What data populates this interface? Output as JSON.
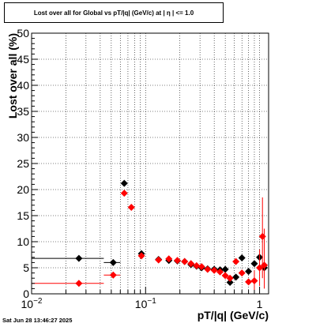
{
  "title_box": {
    "text": "Lost over all for Global vs pT/|q| (GeV/c) at |  η  | <= 1.0"
  },
  "datestamp": "Sat Jun 28 13:46:27 2025",
  "colors": {
    "black_series": "#000000",
    "red_series": "#ff0000",
    "grid": "#000000"
  },
  "chart_data": {
    "type": "scatter",
    "title": "Lost over all for Global vs pT/|q| (GeV/c) at |  η  | <= 1.0",
    "xlabel": "pT/|q| (GeV/c)",
    "ylabel": "Lost over all (%)",
    "xscale": "log",
    "xlim": [
      0.01,
      1.2
    ],
    "ylim": [
      0,
      50
    ],
    "x_tick_labels": [
      {
        "value": 0.01,
        "base": "10",
        "exp": "−2"
      },
      {
        "value": 0.1,
        "base": "10",
        "exp": "−1"
      },
      {
        "value": 1,
        "base": "1",
        "exp": ""
      }
    ],
    "y_ticks": [
      0,
      5,
      10,
      15,
      20,
      25,
      30,
      35,
      40,
      45,
      50
    ],
    "grid": true,
    "series": [
      {
        "color": "black",
        "marker": "diamond",
        "points": [
          {
            "x": 0.026,
            "y": 6.8,
            "xerr": [
              0.01,
              0.043
            ]
          },
          {
            "x": 0.052,
            "y": 6.0,
            "xerr": [
              0.043,
              0.06
            ]
          },
          {
            "x": 0.065,
            "y": 21.2,
            "xerr": [
              0.062,
              0.068
            ]
          },
          {
            "x": 0.092,
            "y": 7.7,
            "xerr": [
              0.087,
              0.097
            ]
          },
          {
            "x": 0.13,
            "y": 6.6
          },
          {
            "x": 0.16,
            "y": 6.4
          },
          {
            "x": 0.19,
            "y": 6.3
          },
          {
            "x": 0.22,
            "y": 6.2
          },
          {
            "x": 0.25,
            "y": 5.6
          },
          {
            "x": 0.28,
            "y": 5.3
          },
          {
            "x": 0.31,
            "y": 5.0
          },
          {
            "x": 0.35,
            "y": 4.8
          },
          {
            "x": 0.4,
            "y": 4.7
          },
          {
            "x": 0.45,
            "y": 4.6
          },
          {
            "x": 0.5,
            "y": 4.7
          },
          {
            "x": 0.55,
            "y": 2.2
          },
          {
            "x": 0.62,
            "y": 3.2
          },
          {
            "x": 0.7,
            "y": 6.9
          },
          {
            "x": 0.8,
            "y": 4.3
          },
          {
            "x": 0.9,
            "y": 5.8
          },
          {
            "x": 1.0,
            "y": 7.0
          },
          {
            "x": 1.1,
            "y": 5.0
          }
        ]
      },
      {
        "color": "red",
        "marker": "diamond",
        "points": [
          {
            "x": 0.026,
            "y": 2.0,
            "xerr": [
              0.01,
              0.043
            ]
          },
          {
            "x": 0.052,
            "y": 3.6,
            "xerr": [
              0.043,
              0.06
            ]
          },
          {
            "x": 0.065,
            "y": 19.3,
            "xerr": [
              0.062,
              0.068
            ]
          },
          {
            "x": 0.075,
            "y": 16.6,
            "xerr": [
              0.071,
              0.079
            ]
          },
          {
            "x": 0.092,
            "y": 7.3,
            "xerr": [
              0.087,
              0.097
            ]
          },
          {
            "x": 0.13,
            "y": 6.5
          },
          {
            "x": 0.16,
            "y": 6.7
          },
          {
            "x": 0.19,
            "y": 6.4
          },
          {
            "x": 0.22,
            "y": 6.2
          },
          {
            "x": 0.25,
            "y": 5.8
          },
          {
            "x": 0.28,
            "y": 5.4
          },
          {
            "x": 0.31,
            "y": 5.2
          },
          {
            "x": 0.35,
            "y": 4.7
          },
          {
            "x": 0.4,
            "y": 4.5
          },
          {
            "x": 0.45,
            "y": 4.2
          },
          {
            "x": 0.5,
            "y": 3.5
          },
          {
            "x": 0.55,
            "y": 3.0
          },
          {
            "x": 0.62,
            "y": 6.2
          },
          {
            "x": 0.7,
            "y": 4.0
          },
          {
            "x": 0.8,
            "y": 2.3
          },
          {
            "x": 0.9,
            "y": 2.5,
            "yerr": [
              0.5,
              4.5
            ]
          },
          {
            "x": 1.0,
            "y": 5.0,
            "yerr": [
              1.5,
              8.5
            ]
          },
          {
            "x": 1.06,
            "y": 11.0,
            "yerr": [
              3.0,
              18.5
            ]
          },
          {
            "x": 1.1,
            "y": 5.5,
            "yerr": [
              1.0,
              12.5
            ]
          }
        ]
      }
    ]
  }
}
